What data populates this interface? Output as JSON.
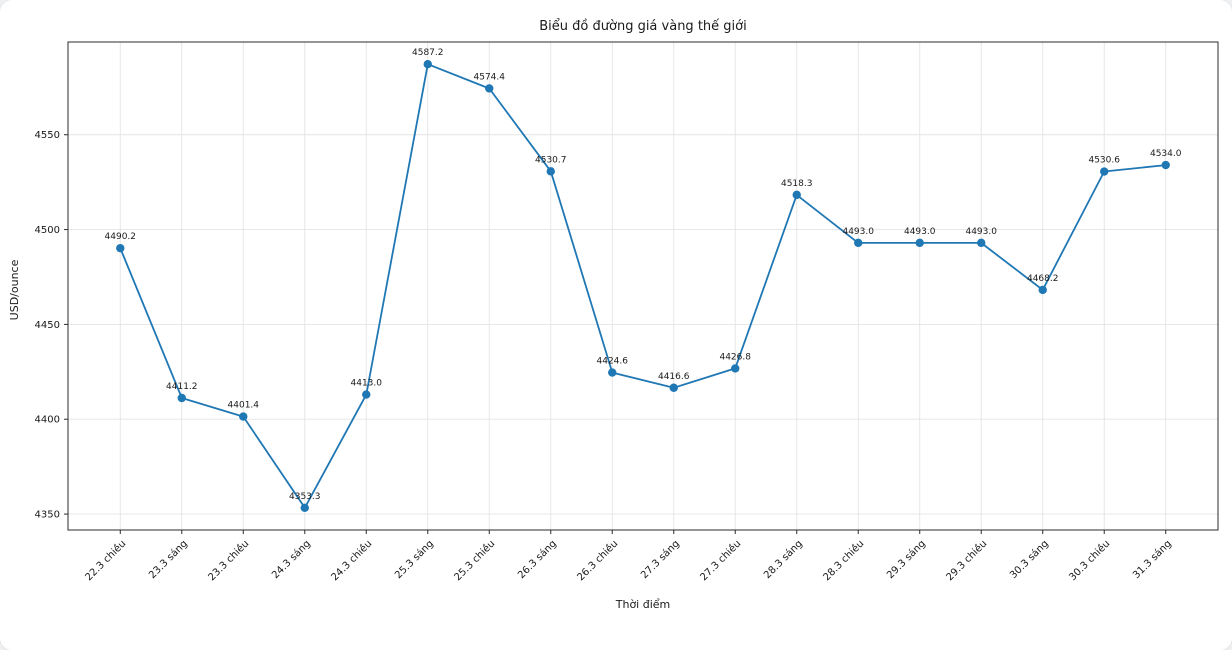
{
  "page": {
    "background": "#eef0f2",
    "card_background": "#ffffff"
  },
  "chart_data": {
    "type": "line",
    "title": "Biểu đồ đường giá vàng thế giới",
    "xlabel": "Thời điểm",
    "ylabel": "USD/ounce",
    "categories": [
      "22.3 chiều",
      "23.3 sáng",
      "23.3 chiều",
      "24.3 sáng",
      "24.3 chiều",
      "25.3 sáng",
      "25.3 chiều",
      "26.3 sáng",
      "26.3 chiều",
      "27.3 sáng",
      "27.3 chiều",
      "28.3 sáng",
      "28.3 chiều",
      "29.3 sáng",
      "29.3 chiều",
      "30.3 sáng",
      "30.3 chiều",
      "31.3 sáng"
    ],
    "values": [
      4490.2,
      4411.2,
      4401.4,
      4353.3,
      4413.0,
      4587.2,
      4574.4,
      4530.7,
      4424.6,
      4416.6,
      4426.8,
      4518.3,
      4493.0,
      4493.0,
      4493.0,
      4468.2,
      4530.6,
      4534.0
    ],
    "ylim": [
      4341.6,
      4598.9
    ],
    "yticks": [
      4350,
      4400,
      4450,
      4500,
      4550
    ],
    "line_color": "#1f77b4",
    "grid_color": "#e4e4e4",
    "frame_color": "#2b2b2b",
    "grid": true,
    "legend": "none"
  }
}
